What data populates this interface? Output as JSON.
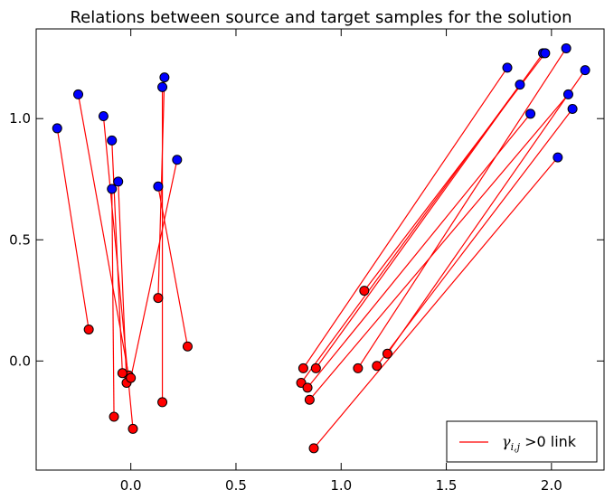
{
  "chart_data": {
    "type": "scatter",
    "title": "Relations between source and target samples for the solution",
    "xlabel": "",
    "ylabel": "",
    "xlim": [
      -0.45,
      2.25
    ],
    "ylim": [
      -0.45,
      1.37
    ],
    "xticks": [
      0.0,
      0.5,
      1.0,
      1.5,
      2.0
    ],
    "xtick_labels": [
      "0.0",
      "0.5",
      "1.0",
      "1.5",
      "2.0"
    ],
    "yticks": [
      0.0,
      0.5,
      1.0
    ],
    "ytick_labels": [
      "0.0",
      "0.5",
      "1.0"
    ],
    "grid": false,
    "legend_position": "bottom-right",
    "colors": {
      "source": "#0000ff",
      "target": "#ff0000",
      "link": "#ff0000"
    },
    "legend": {
      "math": "γ",
      "sub": "i,j",
      "rest": " >0 link"
    },
    "links": [
      {
        "source": [
          -0.35,
          0.96
        ],
        "target": [
          -0.2,
          0.13
        ]
      },
      {
        "source": [
          -0.25,
          1.1
        ],
        "target": [
          -0.01,
          -0.06
        ]
      },
      {
        "source": [
          -0.13,
          1.01
        ],
        "target": [
          0.01,
          -0.28
        ]
      },
      {
        "source": [
          -0.09,
          0.91
        ],
        "target": [
          -0.04,
          -0.05
        ]
      },
      {
        "source": [
          -0.09,
          0.71
        ],
        "target": [
          -0.08,
          -0.23
        ]
      },
      {
        "source": [
          -0.06,
          0.74
        ],
        "target": [
          -0.02,
          -0.09
        ]
      },
      {
        "source": [
          0.13,
          0.72
        ],
        "target": [
          0.27,
          0.06
        ]
      },
      {
        "source": [
          0.15,
          1.13
        ],
        "target": [
          0.15,
          -0.17
        ]
      },
      {
        "source": [
          0.16,
          1.17
        ],
        "target": [
          0.13,
          0.26
        ]
      },
      {
        "source": [
          0.22,
          0.83
        ],
        "target": [
          0.0,
          -0.07
        ]
      },
      {
        "source": [
          1.79,
          1.21
        ],
        "target": [
          0.82,
          -0.03
        ]
      },
      {
        "source": [
          1.85,
          1.14
        ],
        "target": [
          0.81,
          -0.09
        ]
      },
      {
        "source": [
          1.9,
          1.02
        ],
        "target": [
          0.84,
          -0.11
        ]
      },
      {
        "source": [
          1.96,
          1.27
        ],
        "target": [
          0.88,
          -0.03
        ]
      },
      {
        "source": [
          1.97,
          1.27
        ],
        "target": [
          1.11,
          0.29
        ]
      },
      {
        "source": [
          2.03,
          0.84
        ],
        "target": [
          0.87,
          -0.36
        ]
      },
      {
        "source": [
          2.07,
          1.29
        ],
        "target": [
          1.08,
          -0.03
        ]
      },
      {
        "source": [
          2.08,
          1.1
        ],
        "target": [
          0.85,
          -0.16
        ]
      },
      {
        "source": [
          2.1,
          1.04
        ],
        "target": [
          1.17,
          -0.02
        ]
      },
      {
        "source": [
          2.16,
          1.2
        ],
        "target": [
          1.22,
          0.03
        ]
      }
    ]
  }
}
